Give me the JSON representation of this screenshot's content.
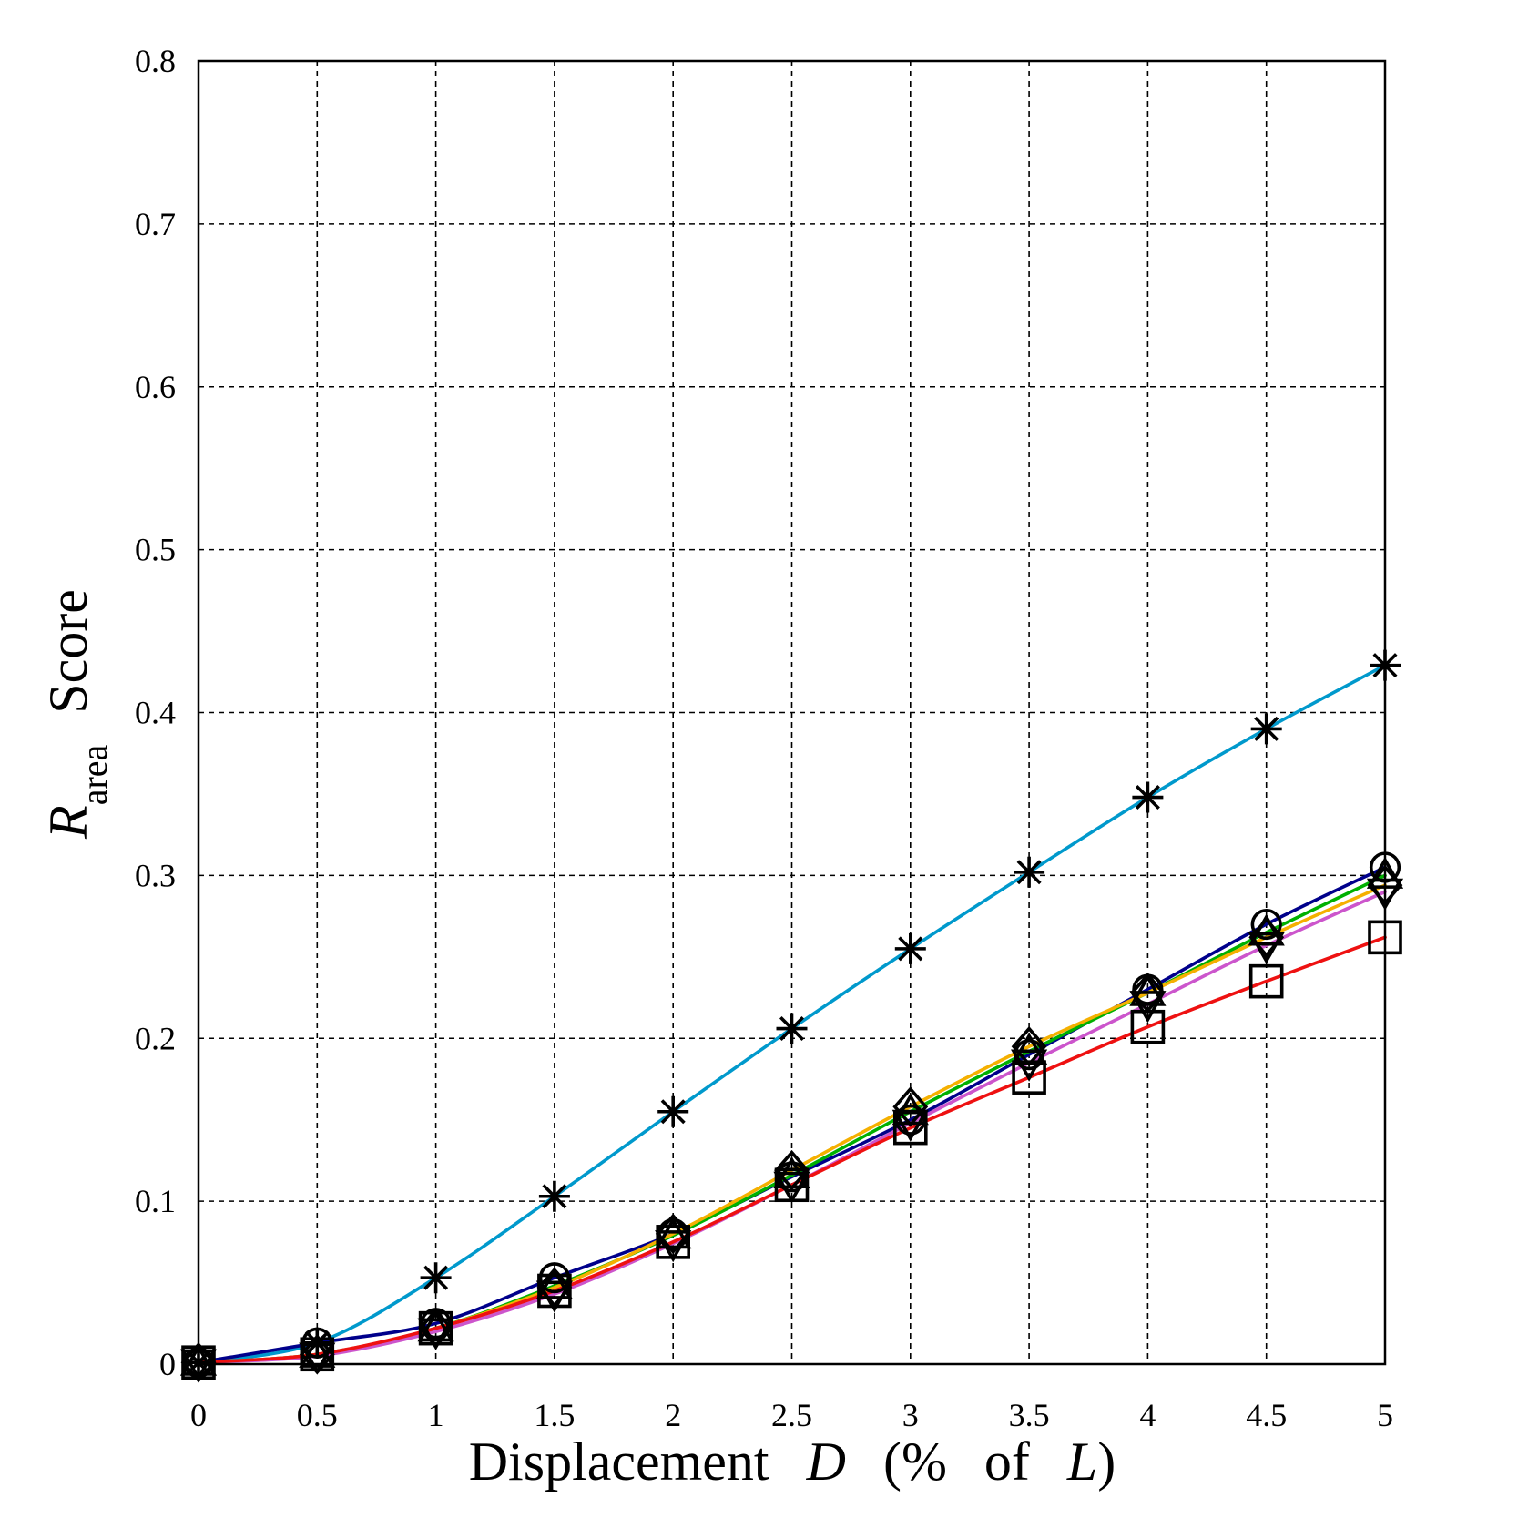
{
  "chart_data": {
    "type": "line",
    "title": "",
    "xlabel": {
      "main": "Displacement",
      "var": "D",
      "paren_open": "(",
      "pct": "%",
      "of": "of",
      "ref": "L",
      "paren_close": ")"
    },
    "ylabel": {
      "var": "R",
      "sub": "area",
      "word": "Score"
    },
    "xlim": [
      0,
      5
    ],
    "ylim": [
      0,
      0.8
    ],
    "x_ticks": [
      "0",
      "0.5",
      "1",
      "1.5",
      "2",
      "2.5",
      "3",
      "3.5",
      "4",
      "4.5",
      "5"
    ],
    "y_ticks": [
      "0",
      "0.1",
      "0.2",
      "0.3",
      "0.4",
      "0.5",
      "0.6",
      "0.7",
      "0.8"
    ],
    "grid": true,
    "x": [
      0,
      0.5,
      1,
      1.5,
      2,
      2.5,
      3,
      3.5,
      4,
      4.5,
      5
    ],
    "series": [
      {
        "color": "#0099cc",
        "marker": "asterisk",
        "values": [
          0.001,
          0.013,
          0.053,
          0.103,
          0.155,
          0.206,
          0.255,
          0.302,
          0.348,
          0.39,
          0.429
        ]
      },
      {
        "color": "#00008b",
        "marker": "circle",
        "values": [
          0.001,
          0.013,
          0.025,
          0.053,
          0.08,
          0.115,
          0.15,
          0.19,
          0.23,
          0.27,
          0.305
        ]
      },
      {
        "color": "#00b000",
        "marker": "triangle-up",
        "values": [
          0.001,
          0.006,
          0.022,
          0.048,
          0.079,
          0.116,
          0.155,
          0.192,
          0.228,
          0.265,
          0.3
        ]
      },
      {
        "color": "#f5b000",
        "marker": "diamond",
        "values": [
          0.001,
          0.006,
          0.022,
          0.047,
          0.08,
          0.119,
          0.158,
          0.195,
          0.228,
          0.262,
          0.294
        ]
      },
      {
        "color": "#cc55cc",
        "marker": "triangle-down",
        "values": [
          0.001,
          0.005,
          0.02,
          0.043,
          0.074,
          0.11,
          0.148,
          0.185,
          0.221,
          0.257,
          0.29
        ]
      },
      {
        "color": "#ee1111",
        "marker": "square",
        "values": [
          0.001,
          0.006,
          0.022,
          0.045,
          0.075,
          0.11,
          0.145,
          0.176,
          0.207,
          0.235,
          0.262
        ]
      }
    ]
  }
}
